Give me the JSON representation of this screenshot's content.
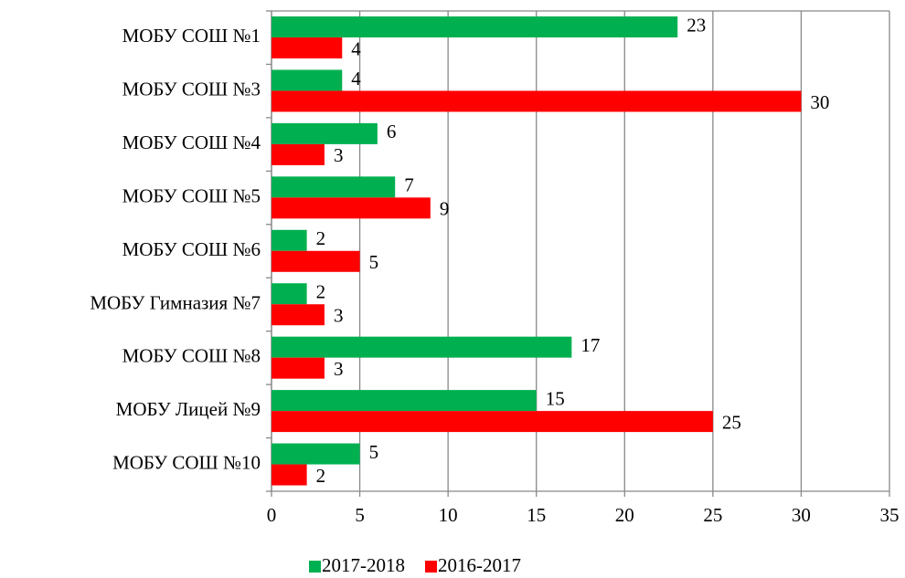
{
  "chart_data": {
    "type": "hbar",
    "categories": [
      "МОБУ СОШ №1",
      "МОБУ СОШ №3",
      "МОБУ СОШ №4",
      "МОБУ СОШ №5",
      "МОБУ СОШ №6",
      "МОБУ Гимназия №7",
      "МОБУ СОШ №8",
      "МОБУ Лицей №9",
      "МОБУ СОШ №10"
    ],
    "series": [
      {
        "name": "2017-2018",
        "color": "#00b050",
        "values": [
          23,
          4,
          6,
          7,
          2,
          2,
          17,
          15,
          5
        ]
      },
      {
        "name": "2016-2017",
        "color": "#ff0000",
        "values": [
          4,
          30,
          3,
          9,
          5,
          3,
          3,
          25,
          2
        ]
      }
    ],
    "xlim": [
      0,
      35
    ],
    "xticks": [
      0,
      5,
      10,
      15,
      20,
      25,
      30,
      35
    ],
    "grid": true,
    "legend": "bottom"
  }
}
